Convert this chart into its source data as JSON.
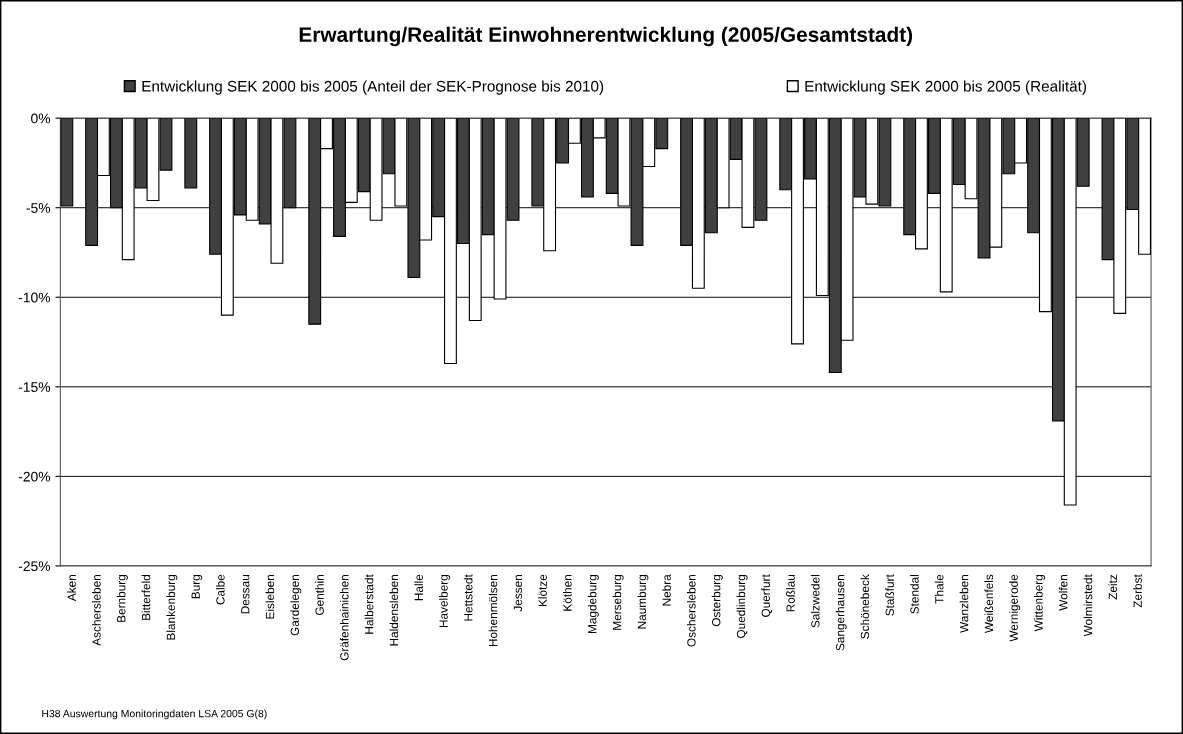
{
  "chart_data": {
    "type": "bar",
    "title": "Erwartung/Realität Einwohnerentwicklung (2005/Gesamtstadt)",
    "categories": [
      "Aken",
      "Aschersleben",
      "Bernburg",
      "Bitterfeld",
      "Blankenburg",
      "Burg",
      "Calbe",
      "Dessau",
      "Eisleben",
      "Gardelegen",
      "Genthin",
      "Gräfenhainichen",
      "Halberstadt",
      "Haldensleben",
      "Halle",
      "Havelberg",
      "Hettstedt",
      "Hohenmölsen",
      "Jessen",
      "Klötze",
      "Köthen",
      "Magdeburg",
      "Merseburg",
      "Naumburg",
      "Nebra",
      "Oschersleben",
      "Osterburg",
      "Quedlinburg",
      "Querfurt",
      "Roßlau",
      "Salzwedel",
      "Sangerhausen",
      "Schönebeck",
      "Staßfurt",
      "Stendal",
      "Thale",
      "Wanzleben",
      "Weißenfels",
      "Wernigerode",
      "Wittenberg",
      "Wolfen",
      "Wolmirstedt",
      "Zeitz",
      "Zerbst"
    ],
    "series": [
      {
        "name": "Entwicklung SEK 2000 bis 2005 (Anteil der SEK-Prognose bis 2010)",
        "color": "#404040",
        "values": [
          -4.9,
          -7.1,
          -5.0,
          -3.9,
          -2.9,
          -3.9,
          -7.6,
          -5.4,
          -5.9,
          -5.0,
          -11.5,
          -6.6,
          -4.1,
          -3.1,
          -8.9,
          -5.5,
          -7.0,
          -6.5,
          -5.7,
          -4.9,
          -2.5,
          -4.4,
          -4.2,
          -7.1,
          -1.7,
          -7.1,
          -6.4,
          -2.3,
          -5.7,
          -4.0,
          -3.4,
          -14.2,
          -4.4,
          -4.9,
          -6.5,
          -4.2,
          -3.7,
          -7.8,
          -3.1,
          -6.4,
          -16.9,
          -3.8,
          -7.9,
          -5.1
        ]
      },
      {
        "name": "Entwicklung SEK 2000 bis 2005 (Realität)",
        "color": "#ffffff",
        "values": [
          null,
          -3.2,
          -7.9,
          -4.6,
          null,
          null,
          -11.0,
          -5.7,
          -8.1,
          null,
          -1.7,
          -4.7,
          -5.7,
          -4.9,
          -6.8,
          -13.7,
          -11.3,
          -10.1,
          null,
          -7.4,
          -1.4,
          -1.1,
          -4.9,
          -2.7,
          null,
          -9.5,
          -5.0,
          -6.1,
          null,
          -12.6,
          -9.9,
          -12.4,
          -4.8,
          null,
          -7.3,
          -9.7,
          -4.5,
          -7.2,
          -2.5,
          -10.8,
          -21.6,
          null,
          -10.9,
          -7.6
        ]
      }
    ],
    "ylim": [
      -25,
      0
    ],
    "yticks": [
      {
        "value": -25,
        "label": "-25%"
      },
      {
        "value": -20,
        "label": "-20%"
      },
      {
        "value": -15,
        "label": "-15%"
      },
      {
        "value": -10,
        "label": "-10%"
      },
      {
        "value": -5,
        "label": "-5%"
      },
      {
        "value": 0,
        "label": "0%"
      }
    ],
    "grid": "y",
    "legend": "top",
    "annotations": [
      "H38 Auswertung Monitoringdaten LSA 2005 G(8)"
    ]
  }
}
